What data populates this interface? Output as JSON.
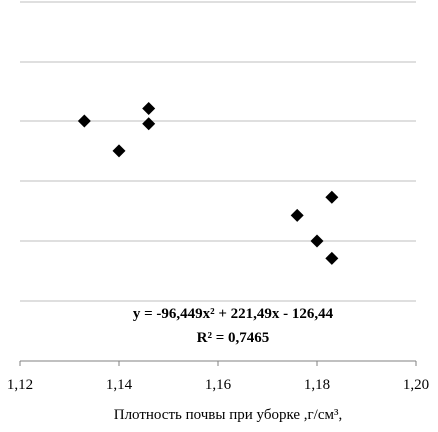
{
  "chart_data": {
    "type": "scatter",
    "title": "",
    "xlabel": "Плотность почвы при уборке ,г/см³,",
    "ylabel": "",
    "xlim": [
      1.12,
      1.2
    ],
    "x_ticks": [
      "1,12",
      "1,14",
      "1,16",
      "1,18",
      "1,20"
    ],
    "x_tick_values": [
      1.12,
      1.14,
      1.16,
      1.18,
      1.2
    ],
    "grid": "horizontal",
    "marker": "diamond",
    "series": [
      {
        "points": [
          {
            "x": 1.133,
            "y": 5.37
          },
          {
            "x": 1.14,
            "y": 4.94
          },
          {
            "x": 1.146,
            "y": 5.55
          },
          {
            "x": 1.146,
            "y": 5.33
          },
          {
            "x": 1.176,
            "y": 4.01
          },
          {
            "x": 1.18,
            "y": 3.64
          },
          {
            "x": 1.183,
            "y": 4.27
          },
          {
            "x": 1.183,
            "y": 3.39
          }
        ]
      }
    ],
    "trendline": {
      "type": "polynomial-2",
      "a": -96.449,
      "b": 221.49,
      "c": -126.44,
      "x_range": [
        1.133,
        1.183
      ],
      "equation": "y = -96,449x² + 221,49x - 126,44",
      "r2": "R² = 0,7465"
    }
  }
}
